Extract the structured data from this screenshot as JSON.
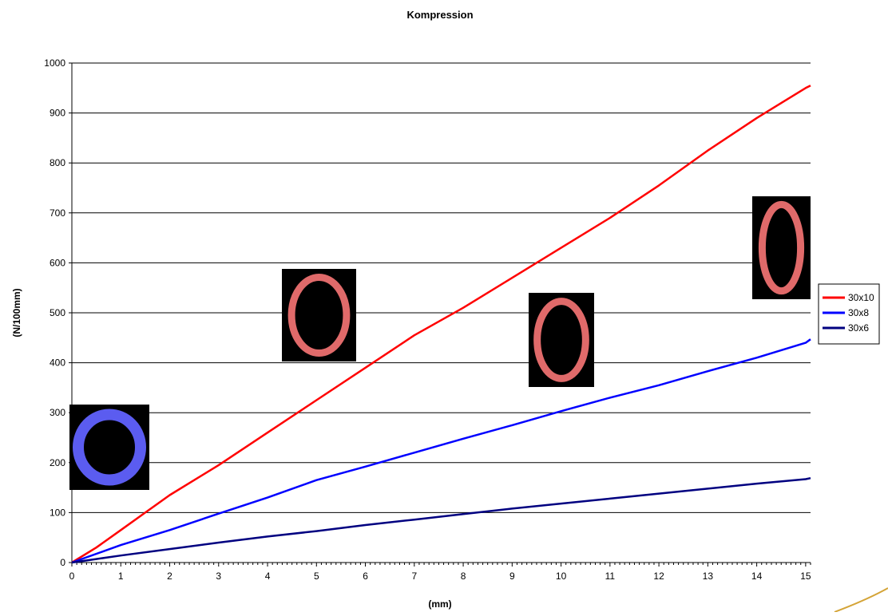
{
  "chart_data": {
    "type": "line",
    "title": "Kompression",
    "xlabel": "(mm)",
    "ylabel": "(N/100mm)",
    "xlim": [
      0,
      15.1
    ],
    "ylim": [
      0,
      1000
    ],
    "x_ticks": [
      0,
      1,
      2,
      3,
      4,
      5,
      6,
      7,
      8,
      9,
      10,
      11,
      12,
      13,
      14,
      15
    ],
    "y_ticks": [
      0,
      100,
      200,
      300,
      400,
      500,
      600,
      700,
      800,
      900,
      1000
    ],
    "grid": "horizontal",
    "legend_position": "right",
    "series": [
      {
        "name": "30x10",
        "color": "#ff0000",
        "x": [
          0,
          0.5,
          1,
          1.5,
          2,
          3,
          4,
          5,
          6,
          7,
          8,
          9,
          10,
          11,
          12,
          13,
          14,
          15,
          15.1
        ],
        "y": [
          0,
          30,
          65,
          100,
          135,
          195,
          260,
          325,
          390,
          455,
          510,
          570,
          630,
          690,
          755,
          825,
          890,
          950,
          955
        ]
      },
      {
        "name": "30x8",
        "color": "#0000ff",
        "x": [
          0,
          1,
          2,
          3,
          4,
          5,
          6,
          7,
          8,
          9,
          10,
          11,
          12,
          13,
          14,
          15,
          15.1
        ],
        "y": [
          0,
          35,
          65,
          98,
          130,
          165,
          192,
          220,
          248,
          275,
          303,
          330,
          355,
          383,
          410,
          440,
          447
        ]
      },
      {
        "name": "30x6",
        "color": "#000080",
        "x": [
          0,
          0.5,
          1,
          2,
          3,
          4,
          5,
          6,
          7,
          8,
          9,
          10,
          11,
          12,
          13,
          14,
          15,
          15.1
        ],
        "y": [
          0,
          7,
          14,
          27,
          40,
          52,
          63,
          75,
          86,
          97,
          108,
          118,
          128,
          138,
          148,
          158,
          167,
          169
        ]
      }
    ],
    "inset_images": [
      {
        "shape": "ring",
        "ring_color": "#5b5cf0"
      },
      {
        "shape": "oval",
        "ring_color": "#e06a6a"
      },
      {
        "shape": "oval",
        "ring_color": "#e06a6a"
      },
      {
        "shape": "tall-oval",
        "ring_color": "#e06a6a"
      }
    ]
  }
}
